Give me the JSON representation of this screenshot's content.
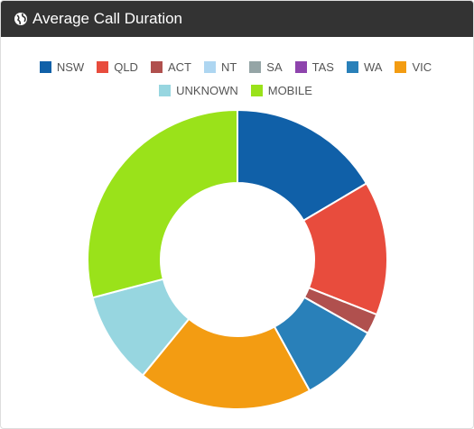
{
  "chart_data": {
    "type": "doughnut",
    "title": "Average Call Duration",
    "categories": [
      "NSW",
      "QLD",
      "ACT",
      "NT",
      "SA",
      "TAS",
      "WA",
      "VIC",
      "UNKNOWN",
      "MOBILE"
    ],
    "values": [
      16.5,
      14.5,
      2.2,
      0,
      0,
      0,
      8.8,
      18.9,
      10,
      29.1
    ],
    "colors": [
      "#1060a8",
      "#e84c3d",
      "#b0504e",
      "#aed6f1",
      "#95a5a6",
      "#8e44ad",
      "#2980b9",
      "#f39c12",
      "#97d6e0",
      "#9ae21a"
    ]
  }
}
